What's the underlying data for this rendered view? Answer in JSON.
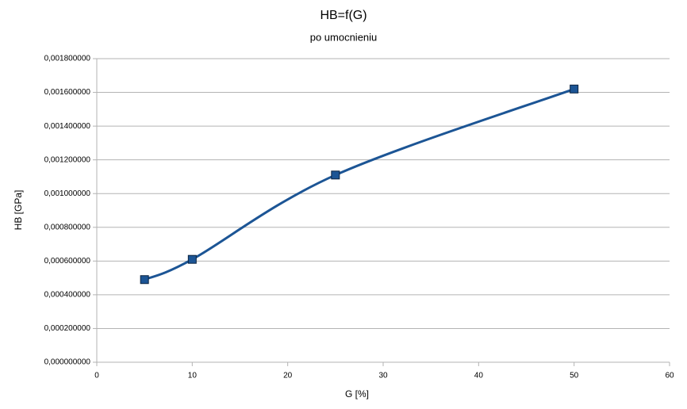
{
  "chart_data": {
    "type": "scatter",
    "title": "HB=f(G)",
    "subtitle": "po umocnieniu",
    "x_label": "G [%]",
    "y_label": "HB [GPa]",
    "series": [
      {
        "name": "HB",
        "color": "#1c5595",
        "x": [
          5,
          10,
          25,
          50
        ],
        "values": [
          0.00049,
          0.00061,
          0.00111,
          0.00162
        ]
      }
    ],
    "xlim": [
      0,
      60
    ],
    "xticks": [
      0,
      10,
      20,
      30,
      40,
      50,
      60
    ],
    "ylim": [
      0,
      0.0018
    ],
    "yticks": [
      {
        "value": 0,
        "label": "0,000000000"
      },
      {
        "value": 0.0002,
        "label": "0,000200000"
      },
      {
        "value": 0.0004,
        "label": "0,000400000"
      },
      {
        "value": 0.0006,
        "label": "0,000600000"
      },
      {
        "value": 0.0008,
        "label": "0,000800000"
      },
      {
        "value": 0.001,
        "label": "0,001000000"
      },
      {
        "value": 0.0012,
        "label": "0,001200000"
      },
      {
        "value": 0.0014,
        "label": "0,001400000"
      },
      {
        "value": 0.0016,
        "label": "0,001600000"
      },
      {
        "value": 0.0018,
        "label": "0,001800000"
      }
    ],
    "grid": true,
    "smooth": true
  }
}
